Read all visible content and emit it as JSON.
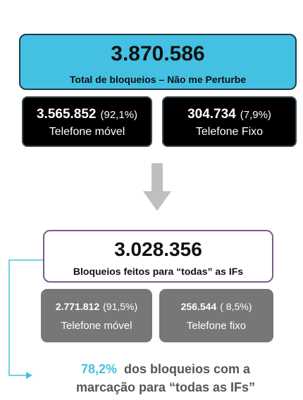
{
  "total": {
    "value": "3.870.586",
    "label": "Total de bloqueios – Não me Perturbe"
  },
  "mobile": {
    "value": "3.565.852",
    "percent": "(92,1%)",
    "label": "Telefone móvel"
  },
  "landline": {
    "value": "304.734",
    "percent": "(7,9%)",
    "label": "Telefone Fixo"
  },
  "all_ifs": {
    "value": "3.028.356",
    "label": "Bloqueios feitos para “todas” as IFs"
  },
  "all_ifs_mobile": {
    "value": "2.771.812",
    "percent": "(91,5%)",
    "label": "Telefone móvel"
  },
  "all_ifs_landline": {
    "value": "256.544",
    "percent": "( 8,5%)",
    "label": "Telefone fixo"
  },
  "footnote": {
    "highlight": "78,2%",
    "line1": "dos bloqueios com a",
    "line2": "marcação para “todas as IFs”"
  },
  "colors": {
    "accent_cyan": "#44c0e2",
    "dark_box": "#000000",
    "gray_box": "#777777",
    "mid_border": "#7b5a86",
    "arrow": "#bfbfbf"
  }
}
